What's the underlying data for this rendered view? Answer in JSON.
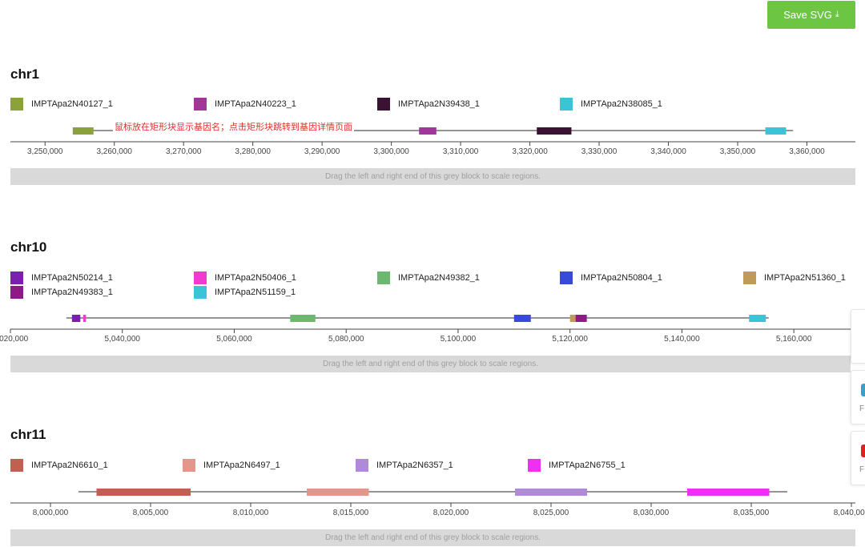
{
  "toolbar": {
    "save_label": "Save SVG",
    "save_icon": "download-icon"
  },
  "hint_text": "鼠标放在矩形块显示基因名；点击矩形块跳转到基因详情页面",
  "scale_bar_text": "Drag the left and right end of this grey block to scale regions.",
  "side_panel": {
    "items": [
      {
        "text": "F",
        "color": "#3aa0c8"
      },
      {
        "text": "F",
        "color": "#e02020"
      }
    ]
  },
  "sections": [
    {
      "title": "chr1",
      "domain": [
        3245000,
        3367000
      ],
      "backbone": [
        3255000,
        3358000
      ],
      "genes": [
        {
          "name": "IMPTApa2N40127_1",
          "color": "#8ba23a",
          "start": 3254000,
          "end": 3257000
        },
        {
          "name": "IMPTApa2N40223_1",
          "color": "#a0359a",
          "start": 3304000,
          "end": 3306500
        },
        {
          "name": "IMPTApa2N39438_1",
          "color": "#3a1232",
          "start": 3321000,
          "end": 3326000
        },
        {
          "name": "IMPTApa2N38085_1",
          "color": "#3bc3d8",
          "start": 3354000,
          "end": 3357000
        }
      ],
      "ticks": [
        "3,250,000",
        "3,260,000",
        "3,270,000",
        "3,280,000",
        "3,290,000",
        "3,300,000",
        "3,310,000",
        "3,320,000",
        "3,330,000",
        "3,340,000",
        "3,350,000",
        "3,360,000"
      ],
      "tick_values": [
        3250000,
        3260000,
        3270000,
        3280000,
        3290000,
        3300000,
        3310000,
        3320000,
        3330000,
        3340000,
        3350000,
        3360000
      ]
    },
    {
      "title": "chr10",
      "domain": [
        5020000,
        5171000
      ],
      "backbone": [
        5030000,
        5155500
      ],
      "genes": [
        {
          "name": "IMPTApa2N50214_1",
          "color": "#7b1fb0",
          "start": 5031000,
          "end": 5032500
        },
        {
          "name": "IMPTApa2N50406_1",
          "color": "#f03bd0",
          "start": 5033000,
          "end": 5033500
        },
        {
          "name": "IMPTApa2N49382_1",
          "color": "#6db870",
          "start": 5070000,
          "end": 5074500
        },
        {
          "name": "IMPTApa2N50804_1",
          "color": "#3a4ad8",
          "start": 5110000,
          "end": 5113000
        },
        {
          "name": "IMPTApa2N51360_1",
          "color": "#c09a58",
          "start": 5120000,
          "end": 5121000
        },
        {
          "name": "IMPTApa2N49383_1",
          "color": "#8e1a86",
          "start": 5121000,
          "end": 5123000
        },
        {
          "name": "IMPTApa2N51159_1",
          "color": "#3bc3d8",
          "start": 5152000,
          "end": 5155000
        }
      ],
      "ticks": [
        "5,020,000",
        "5,040,000",
        "5,060,000",
        "5,080,000",
        "5,100,000",
        "5,120,000",
        "5,140,000",
        "5,160,000"
      ],
      "tick_values": [
        5020000,
        5040000,
        5060000,
        5080000,
        5100000,
        5120000,
        5140000,
        5160000
      ]
    },
    {
      "title": "chr11",
      "domain": [
        7998000,
        8040200
      ],
      "backbone": [
        8001400,
        8036800
      ],
      "genes": [
        {
          "name": "IMPTApa2N6610_1",
          "color": "#c06050",
          "start": 8002300,
          "end": 8007000
        },
        {
          "name": "IMPTApa2N6497_1",
          "color": "#e4968a",
          "start": 8012800,
          "end": 8015900
        },
        {
          "name": "IMPTApa2N6357_1",
          "color": "#b08ad8",
          "start": 8023200,
          "end": 8026800
        },
        {
          "name": "IMPTApa2N6755_1",
          "color": "#f030f0",
          "start": 8031800,
          "end": 8035900
        }
      ],
      "ticks": [
        "8,000,000",
        "8,005,000",
        "8,010,000",
        "8,015,000",
        "8,020,000",
        "8,025,000",
        "8,030,000",
        "8,035,000",
        "8,040,000"
      ],
      "tick_values": [
        8000000,
        8005000,
        8010000,
        8015000,
        8020000,
        8025000,
        8030000,
        8035000,
        8040000
      ]
    }
  ]
}
